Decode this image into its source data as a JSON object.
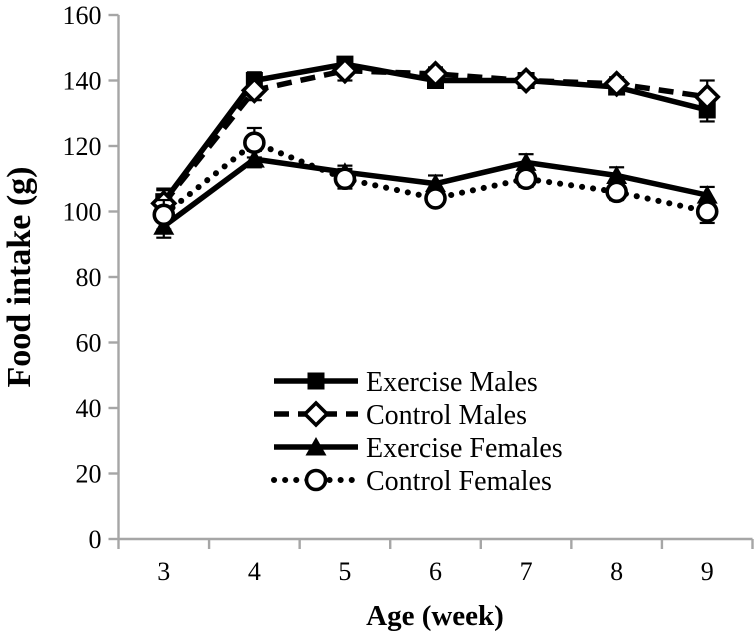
{
  "chart_data": {
    "type": "line",
    "title": "",
    "xlabel": "Age (week)",
    "ylabel": "Food intake (g)",
    "x": [
      "3",
      "4",
      "5",
      "6",
      "7",
      "8",
      "9"
    ],
    "ylim": [
      0,
      160
    ],
    "ytick_step": 20,
    "grid": false,
    "legend_position": "inside-lower-center",
    "axis_color": "#a6a6a6",
    "line_color": "#000000",
    "series": [
      {
        "name": "Exercise Males",
        "marker": "square-filled",
        "line": "solid",
        "color": "#000000",
        "values": [
          103,
          140,
          145,
          140,
          140,
          138,
          131
        ],
        "errors": [
          4,
          2.5,
          2,
          2,
          1.5,
          2,
          3.5
        ]
      },
      {
        "name": "Exercise Females",
        "marker": "triangle-filled",
        "line": "solid",
        "color": "#000000",
        "values": [
          95.5,
          116,
          112,
          108.5,
          115,
          111,
          105
        ],
        "errors": [
          3.5,
          2.5,
          2,
          2.5,
          2.5,
          2.5,
          2.5
        ]
      },
      {
        "name": "Control Males",
        "marker": "diamond-open",
        "line": "dashed",
        "color": "#000000",
        "values": [
          102.5,
          137,
          143,
          142,
          140,
          139,
          135
        ],
        "errors": [
          4,
          3,
          3,
          2,
          2,
          2,
          5
        ]
      },
      {
        "name": "Control Females",
        "marker": "circle-open",
        "line": "dotted",
        "color": "#000000",
        "values": [
          99,
          121,
          110,
          104,
          110,
          106,
          100
        ],
        "errors": [
          4.5,
          4.5,
          3,
          2,
          2.5,
          2.5,
          3.5
        ]
      }
    ],
    "legend": [
      {
        "label": "Exercise Males",
        "marker": "square-filled",
        "line": "solid"
      },
      {
        "label": "Control Males",
        "marker": "diamond-open",
        "line": "dashed"
      },
      {
        "label": "Exercise Females",
        "marker": "triangle-filled",
        "line": "solid"
      },
      {
        "label": "Control Females",
        "marker": "circle-open",
        "line": "dotted"
      }
    ]
  }
}
